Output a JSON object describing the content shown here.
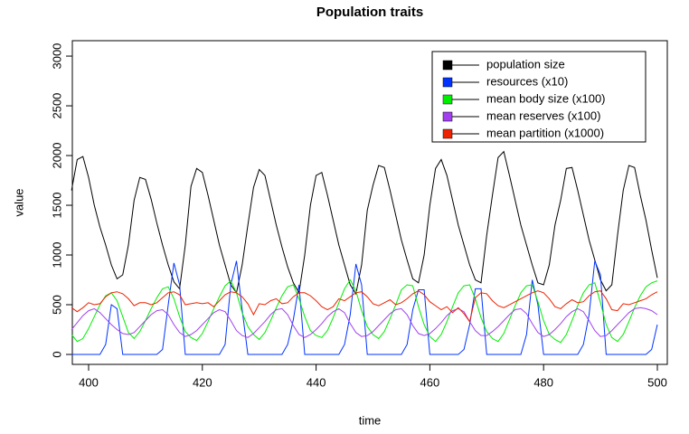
{
  "chart_data": {
    "type": "line",
    "title": "Population traits",
    "x_label": "time",
    "y_label": "value",
    "x": [
      397,
      398,
      399,
      400,
      401,
      402,
      403,
      404,
      405,
      406,
      407,
      408,
      409,
      410,
      411,
      412,
      413,
      414,
      415,
      416,
      417,
      418,
      419,
      420,
      421,
      422,
      423,
      424,
      425,
      426,
      427,
      428,
      429,
      430,
      431,
      432,
      433,
      434,
      435,
      436,
      437,
      438,
      439,
      440,
      441,
      442,
      443,
      444,
      445,
      446,
      447,
      448,
      449,
      450,
      451,
      452,
      453,
      454,
      455,
      456,
      457,
      458,
      459,
      460,
      461,
      462,
      463,
      464,
      465,
      466,
      467,
      468,
      469,
      470,
      471,
      472,
      473,
      474,
      475,
      476,
      477,
      478,
      479,
      480,
      481,
      482,
      483,
      484,
      485,
      486,
      487,
      488,
      489,
      490,
      491,
      492,
      493,
      494,
      495,
      496,
      497,
      498,
      499,
      500
    ],
    "series": [
      {
        "name": "population size",
        "color": "#000000",
        "values": [
          1650,
          1960,
          1990,
          1780,
          1500,
          1280,
          1100,
          900,
          760,
          800,
          1100,
          1550,
          1780,
          1760,
          1560,
          1320,
          1100,
          900,
          730,
          660,
          1100,
          1690,
          1870,
          1830,
          1600,
          1350,
          1100,
          900,
          700,
          620,
          900,
          1300,
          1680,
          1860,
          1800,
          1550,
          1300,
          1080,
          880,
          720,
          620,
          1000,
          1500,
          1800,
          1830,
          1600,
          1350,
          1100,
          900,
          700,
          610,
          900,
          1450,
          1700,
          1900,
          1880,
          1650,
          1400,
          1150,
          950,
          760,
          720,
          1000,
          1500,
          1870,
          1960,
          1800,
          1550,
          1300,
          1100,
          900,
          750,
          720,
          1200,
          1600,
          1980,
          2040,
          1800,
          1550,
          1300,
          1100,
          900,
          720,
          700,
          900,
          1300,
          1550,
          1870,
          1880,
          1650,
          1400,
          1150,
          950,
          750,
          640,
          700,
          1200,
          1650,
          1900,
          1880,
          1600,
          1350,
          1050,
          770
        ]
      },
      {
        "name": "resources (x10)",
        "color": "#0033ff",
        "values": [
          0,
          0,
          0,
          0,
          0,
          0,
          100,
          500,
          460,
          0,
          0,
          0,
          0,
          0,
          0,
          0,
          50,
          500,
          920,
          700,
          0,
          0,
          0,
          0,
          0,
          0,
          0,
          100,
          700,
          940,
          450,
          0,
          0,
          0,
          0,
          0,
          0,
          0,
          100,
          350,
          700,
          0,
          0,
          0,
          0,
          0,
          0,
          0,
          100,
          400,
          910,
          700,
          0,
          0,
          0,
          0,
          0,
          0,
          0,
          100,
          450,
          650,
          650,
          0,
          0,
          0,
          0,
          0,
          0,
          50,
          300,
          660,
          660,
          0,
          0,
          0,
          0,
          0,
          0,
          0,
          200,
          750,
          500,
          0,
          0,
          0,
          0,
          0,
          0,
          0,
          100,
          400,
          940,
          800,
          0,
          0,
          0,
          0,
          0,
          0,
          0,
          0,
          50,
          300
        ]
      },
      {
        "name": "mean body size (x100)",
        "color": "#00ee00",
        "values": [
          200,
          130,
          160,
          260,
          380,
          500,
          590,
          620,
          540,
          380,
          220,
          160,
          230,
          340,
          460,
          570,
          660,
          680,
          560,
          380,
          230,
          170,
          140,
          210,
          330,
          460,
          580,
          690,
          740,
          620,
          420,
          280,
          200,
          150,
          220,
          340,
          470,
          590,
          680,
          700,
          560,
          380,
          240,
          190,
          170,
          240,
          370,
          520,
          660,
          750,
          640,
          440,
          280,
          200,
          160,
          230,
          360,
          500,
          650,
          700,
          690,
          480,
          300,
          180,
          130,
          200,
          330,
          480,
          620,
          690,
          700,
          560,
          370,
          230,
          160,
          130,
          210,
          350,
          490,
          620,
          690,
          700,
          530,
          340,
          200,
          150,
          120,
          200,
          340,
          490,
          620,
          700,
          720,
          520,
          300,
          170,
          130,
          200,
          330,
          470,
          590,
          680,
          720,
          740
        ]
      },
      {
        "name": "mean reserves (x100)",
        "color": "#a040ee",
        "values": [
          250,
          320,
          390,
          440,
          460,
          420,
          360,
          300,
          250,
          210,
          200,
          220,
          280,
          340,
          400,
          440,
          450,
          400,
          300,
          220,
          180,
          200,
          240,
          300,
          360,
          420,
          450,
          430,
          340,
          240,
          190,
          170,
          210,
          270,
          330,
          400,
          450,
          460,
          400,
          290,
          200,
          170,
          200,
          250,
          310,
          380,
          430,
          460,
          420,
          310,
          220,
          180,
          190,
          230,
          290,
          350,
          410,
          450,
          460,
          400,
          290,
          210,
          190,
          210,
          260,
          320,
          390,
          440,
          460,
          430,
          330,
          240,
          190,
          190,
          230,
          280,
          340,
          400,
          450,
          460,
          410,
          310,
          220,
          180,
          200,
          250,
          310,
          380,
          430,
          460,
          430,
          340,
          240,
          180,
          190,
          240,
          300,
          360,
          420,
          460,
          470,
          460,
          440,
          400
        ]
      },
      {
        "name": "mean partition (x1000)",
        "color": "#ee2200",
        "values": [
          470,
          430,
          470,
          520,
          500,
          510,
          580,
          620,
          630,
          610,
          560,
          490,
          520,
          520,
          500,
          520,
          570,
          620,
          630,
          600,
          500,
          510,
          520,
          510,
          520,
          480,
          540,
          600,
          630,
          620,
          580,
          510,
          400,
          510,
          500,
          540,
          560,
          510,
          520,
          580,
          620,
          620,
          590,
          540,
          480,
          450,
          480,
          560,
          540,
          580,
          620,
          630,
          580,
          510,
          490,
          520,
          550,
          500,
          520,
          560,
          610,
          640,
          600,
          530,
          490,
          450,
          480,
          420,
          470,
          410,
          330,
          570,
          620,
          610,
          540,
          490,
          470,
          500,
          530,
          560,
          590,
          620,
          640,
          620,
          560,
          480,
          460,
          510,
          550,
          520,
          530,
          590,
          630,
          640,
          560,
          450,
          440,
          510,
          500,
          520,
          540,
          560,
          600,
          630
        ]
      }
    ],
    "xlim": [
      397.14,
      501.75
    ],
    "xticks": [
      400,
      420,
      440,
      460,
      480,
      500
    ],
    "ylim": [
      -100,
      3155
    ],
    "yticks": [
      0,
      500,
      1000,
      1500,
      2000,
      2500,
      3000
    ],
    "legend": "topright"
  }
}
